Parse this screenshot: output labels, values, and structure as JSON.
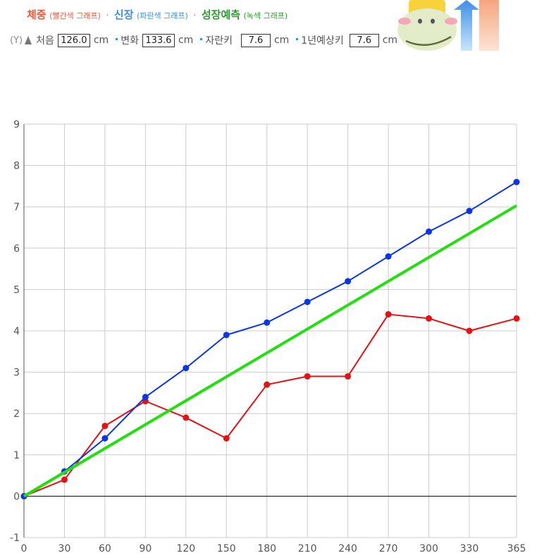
{
  "legend": {
    "weight_label": "체중",
    "weight_note": "(빨간색 그래프)",
    "height_label": "신장",
    "height_note": "(파란색 그래프)",
    "growth_label": "성장예측",
    "growth_note": "(녹색 그래프)",
    "separator": "·"
  },
  "info": {
    "y_badge": "(Y)",
    "start_label": "처음",
    "start_value": "126.0",
    "change_label": "변화",
    "change_value": "133.6",
    "grown_label": "자란키",
    "grown_value": "7.6",
    "predict_label": "1년예상키",
    "predict_value": "7.6",
    "unit": "cm"
  },
  "colors": {
    "weight": "#e81010",
    "height": "#0b36e8",
    "growth": "#22e010",
    "grid": "#cccccc",
    "zero_line": "#000000"
  },
  "chart_data": {
    "type": "line",
    "x": [
      0,
      30,
      60,
      90,
      120,
      150,
      180,
      210,
      240,
      270,
      300,
      330,
      365
    ],
    "xticks": [
      "0",
      "30",
      "60",
      "90",
      "120",
      "150",
      "180",
      "210",
      "240",
      "270",
      "300",
      "330",
      "365"
    ],
    "yticks": [
      "-1",
      "0",
      "1",
      "2",
      "3",
      "4",
      "5",
      "6",
      "7",
      "8",
      "9"
    ],
    "ylim": [
      -1,
      9
    ],
    "grid": true,
    "series": [
      {
        "name": "체중",
        "color": "#e81010",
        "values": [
          0,
          0.4,
          1.7,
          2.3,
          1.9,
          1.4,
          2.7,
          2.9,
          2.9,
          4.4,
          4.3,
          4.0,
          4.3
        ]
      },
      {
        "name": "신장",
        "color": "#0b36e8",
        "values": [
          0,
          0.6,
          1.4,
          2.4,
          3.1,
          3.9,
          4.2,
          4.7,
          5.2,
          5.8,
          6.4,
          6.9,
          7.6
        ]
      },
      {
        "name": "성장예측",
        "color": "#22e010",
        "x": [
          0,
          365
        ],
        "values": [
          0,
          7.03
        ]
      }
    ]
  }
}
